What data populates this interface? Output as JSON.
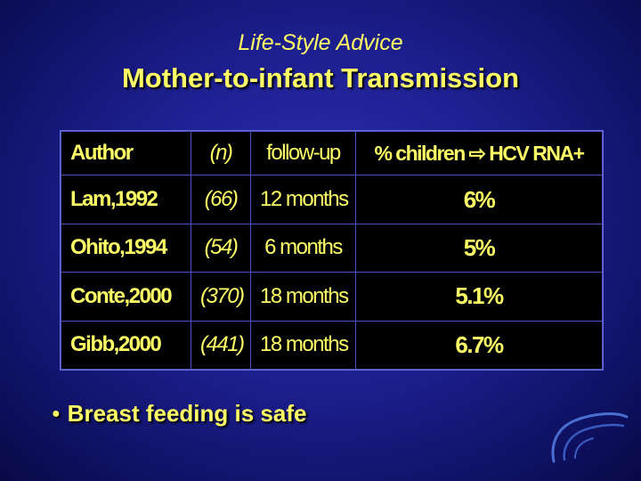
{
  "slide": {
    "subtitle": "Life-Style Advice",
    "title": "Mother-to-infant Transmission"
  },
  "table": {
    "headers": {
      "author": "Author",
      "n": "(n)",
      "followup": "follow-up",
      "outcome": "% children ⇨ HCV RNA+"
    },
    "rows": [
      {
        "author": "Lam,1992",
        "n": "(66)",
        "followup": "12 months",
        "pct": "6%"
      },
      {
        "author": "Ohito,1994",
        "n": "(54)",
        "followup": "6 months",
        "pct": "5%"
      },
      {
        "author": "Conte,2000",
        "n": "(370)",
        "followup": "18 months",
        "pct": "5.1%"
      },
      {
        "author": "Gibb,2000",
        "n": "(441)",
        "followup": "18 months",
        "pct": "6.7%"
      }
    ]
  },
  "bullets": [
    {
      "text": "Breast feeding is safe"
    }
  ],
  "colors": {
    "text_accent": "#ffff66",
    "background": "#1d1f8f",
    "table_bg": "#000000"
  }
}
